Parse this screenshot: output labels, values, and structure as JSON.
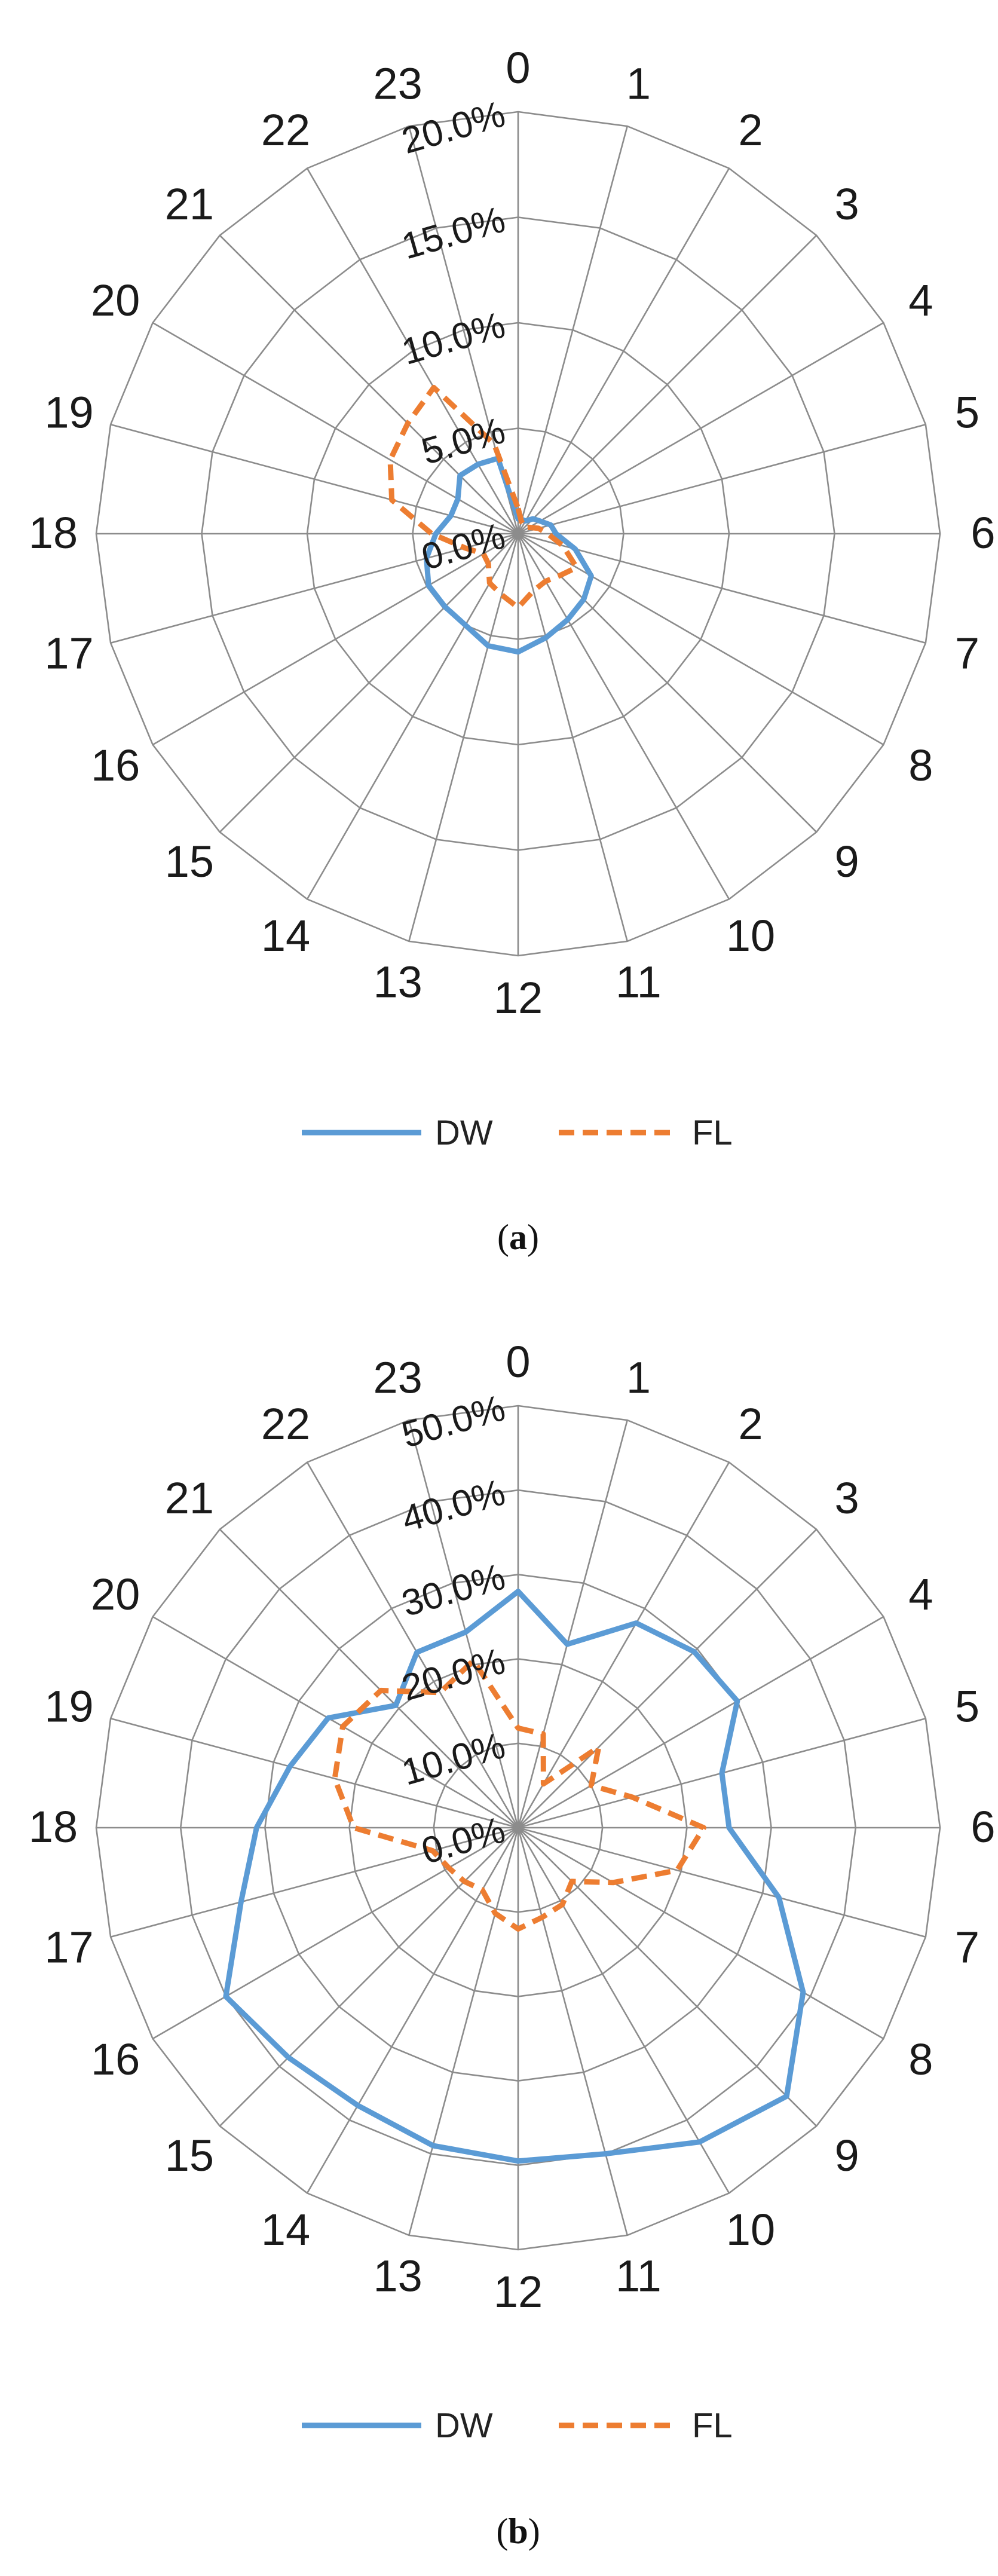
{
  "chart_data": [
    {
      "type": "radar",
      "panel": "a",
      "caption": {
        "open": "(",
        "letter": "a",
        "close": ")"
      },
      "categories": [
        "0",
        "1",
        "2",
        "3",
        "4",
        "5",
        "6",
        "7",
        "8",
        "9",
        "10",
        "11",
        "12",
        "13",
        "14",
        "15",
        "16",
        "17",
        "18",
        "19",
        "20",
        "21",
        "22",
        "23"
      ],
      "rlim": [
        0,
        20
      ],
      "ticks": [
        0,
        5,
        10,
        15,
        20
      ],
      "tick_labels": [
        "0.0%",
        "5.0%",
        "10.0%",
        "15.0%",
        "20.0%"
      ],
      "legend_placement": "bottom",
      "series": [
        {
          "name": "DW",
          "color": "#5b9bd5",
          "style": "solid",
          "values": [
            0.7,
            0.7,
            0.7,
            1.0,
            1.2,
            1.6,
            1.8,
            2.8,
            4.0,
            4.4,
            4.7,
            5.1,
            5.6,
            5.5,
            5.0,
            4.9,
            4.9,
            4.5,
            3.9,
            3.3,
            3.3,
            3.9,
            3.8,
            3.7
          ]
        },
        {
          "name": "FL",
          "color": "#ed7d31",
          "style": "dashed",
          "values": [
            1.2,
            0.6,
            0.5,
            0.4,
            0.6,
            1.0,
            1.4,
            2.2,
            3.2,
            2.8,
            2.6,
            2.8,
            3.5,
            3.0,
            2.7,
            2.0,
            1.9,
            2.6,
            4.1,
            6.2,
            7.0,
            7.4,
            8.0,
            4.4
          ]
        }
      ]
    },
    {
      "type": "radar",
      "panel": "b",
      "caption": {
        "open": "(",
        "letter": "b",
        "close": ")"
      },
      "categories": [
        "0",
        "1",
        "2",
        "3",
        "4",
        "5",
        "6",
        "7",
        "8",
        "9",
        "10",
        "11",
        "12",
        "13",
        "14",
        "15",
        "16",
        "17",
        "18",
        "19",
        "20",
        "21",
        "22",
        "23"
      ],
      "rlim": [
        0,
        50
      ],
      "ticks": [
        0,
        10,
        20,
        30,
        40,
        50
      ],
      "tick_labels": [
        "0.0%",
        "10.0%",
        "20.0%",
        "30.0%",
        "40.0%",
        "50.0%"
      ],
      "legend_placement": "bottom",
      "series": [
        {
          "name": "DW",
          "color": "#5b9bd5",
          "style": "solid",
          "values": [
            28.0,
            22.5,
            28.0,
            29.5,
            30.0,
            25.0,
            25.0,
            32.0,
            39.0,
            45.0,
            43.0,
            40.0,
            39.5,
            39.0,
            38.0,
            38.5,
            40.0,
            34.0,
            31.0,
            28.0,
            26.0,
            20.5,
            24.0,
            24.0
          ]
        },
        {
          "name": "FL",
          "color": "#ed7d31",
          "style": "dashed",
          "values": [
            11.8,
            11.5,
            6.0,
            13.5,
            10.0,
            14.0,
            22.0,
            19.5,
            13.0,
            9.0,
            10.5,
            11.0,
            12.0,
            10.5,
            8.5,
            9.0,
            9.5,
            10.5,
            19.5,
            22.5,
            24.0,
            23.0,
            18.5,
            20.5
          ]
        }
      ]
    }
  ]
}
